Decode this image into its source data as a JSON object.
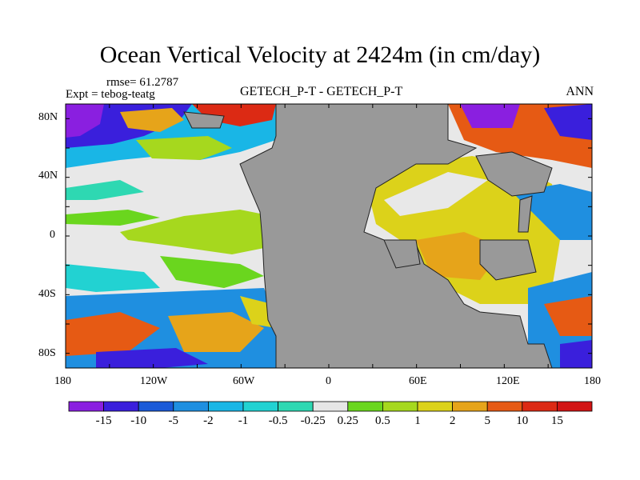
{
  "title": "Ocean Vertical Velocity at 2424m (in cm/day)",
  "rmse": "rmse= 61.2787",
  "expt": "Expt = tebog-teatg",
  "center_label": "GETECH_P-T - GETECH_P-T",
  "season": "ANN",
  "map": {
    "projection": "cylindrical equidistant",
    "lon_range": [
      -180,
      180
    ],
    "lat_range": [
      -90,
      90
    ],
    "x_tick_labels": [
      "180",
      "120W",
      "60W",
      "0",
      "60E",
      "120E",
      "180"
    ],
    "y_tick_labels": [
      "80N",
      "40N",
      "0",
      "40S",
      "80S"
    ],
    "land_color": "#999999"
  },
  "colorbar": {
    "levels": [
      "-15",
      "-10",
      "-5",
      "-2",
      "-1",
      "-0.5",
      "-0.25",
      "0.25",
      "0.5",
      "1",
      "2",
      "5",
      "10",
      "15"
    ],
    "colors": [
      "#8a1fe0",
      "#3a1fdc",
      "#1a5ad8",
      "#1f8fe0",
      "#19b6e6",
      "#22d2d2",
      "#2ed8b2",
      "#e6e6e6",
      "#6ad61e",
      "#a6d81e",
      "#dcd21a",
      "#e6a41a",
      "#e65a14",
      "#dc2a14",
      "#d21414"
    ]
  }
}
